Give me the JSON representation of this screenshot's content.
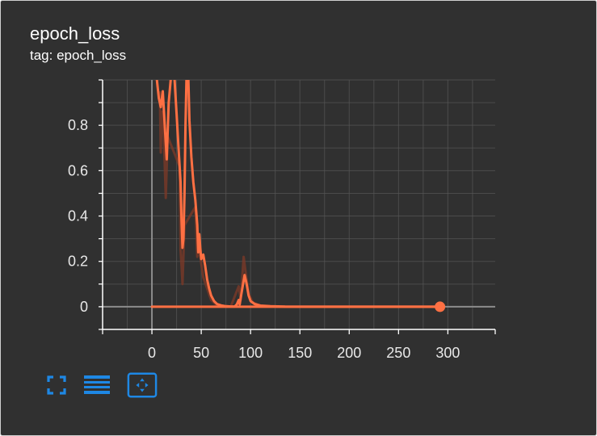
{
  "card": {
    "title": "epoch_loss",
    "subtitle": "tag: epoch_loss"
  },
  "toolbar": {
    "buttons": [
      {
        "name": "fullscreen-icon"
      },
      {
        "name": "data-table-icon"
      },
      {
        "name": "fit-domain-icon"
      }
    ]
  },
  "colors": {
    "series": "#ff7043",
    "raw_series": "#7a3a28",
    "background": "#303030",
    "grid": "#555555",
    "axis": "#8c8c8c",
    "icon": "#1e88e5"
  },
  "chart_data": {
    "type": "line",
    "xlim": [
      -50,
      348
    ],
    "ylim": [
      -0.1,
      1.0
    ],
    "x_ticks": [
      0,
      50,
      100,
      150,
      200,
      250,
      300
    ],
    "y_ticks": [
      0,
      0.2,
      0.4,
      0.6,
      0.8
    ],
    "grid": true,
    "legend": "none",
    "series": [
      {
        "smoothed": true,
        "points": [
          [
            0,
            0
          ],
          [
            292,
            0
          ]
        ],
        "end_marker": [
          292,
          0
        ]
      },
      {
        "smoothed": true,
        "points": [
          [
            5,
            1.0
          ],
          [
            7,
            0.92
          ],
          [
            9,
            0.88
          ],
          [
            11,
            0.95
          ],
          [
            13,
            0.8
          ],
          [
            15,
            0.65
          ],
          [
            17,
            0.9
          ],
          [
            19,
            1.0
          ]
        ]
      },
      {
        "smoothed": true,
        "points": [
          [
            23,
            1.0
          ],
          [
            25,
            0.85
          ],
          [
            27,
            0.7
          ],
          [
            29,
            0.55
          ],
          [
            30,
            0.38
          ],
          [
            31,
            0.26
          ],
          [
            32,
            0.3
          ],
          [
            33,
            0.5
          ],
          [
            34,
            0.8
          ],
          [
            35,
            1.0
          ]
        ]
      },
      {
        "smoothed": true,
        "points": [
          [
            37,
            1.0
          ],
          [
            38,
            0.82
          ],
          [
            40,
            0.66
          ],
          [
            42,
            0.55
          ],
          [
            44,
            0.47
          ],
          [
            46,
            0.36
          ],
          [
            47,
            0.24
          ],
          [
            48,
            0.32
          ],
          [
            49,
            0.26
          ],
          [
            50,
            0.21
          ],
          [
            52,
            0.23
          ],
          [
            54,
            0.18
          ],
          [
            56,
            0.12
          ],
          [
            58,
            0.08
          ],
          [
            60,
            0.05
          ],
          [
            63,
            0.025
          ],
          [
            66,
            0.012
          ],
          [
            70,
            0.006
          ],
          [
            74,
            0.003
          ],
          [
            80,
            0.001
          ],
          [
            84,
            0.001
          ],
          [
            86,
            0.01
          ],
          [
            88,
            0.03
          ],
          [
            89,
            0.01
          ],
          [
            90,
            0.04
          ],
          [
            92,
            0.09
          ],
          [
            94,
            0.14
          ],
          [
            96,
            0.1
          ],
          [
            98,
            0.05
          ],
          [
            100,
            0.025
          ],
          [
            104,
            0.012
          ],
          [
            110,
            0.005
          ],
          [
            120,
            0.002
          ],
          [
            135,
            0.0005
          ],
          [
            160,
            0.0002
          ],
          [
            200,
            0.0001
          ],
          [
            292,
            0.0
          ]
        ]
      }
    ],
    "raw_series": [
      {
        "points": [
          [
            8,
            0.95
          ],
          [
            9,
            0.68
          ],
          [
            10,
            0.86
          ],
          [
            12,
            0.76
          ],
          [
            14,
            0.48
          ],
          [
            16,
            0.75
          ],
          [
            28,
            0.62
          ],
          [
            29,
            0.25
          ],
          [
            30,
            0.18
          ],
          [
            31,
            0.1
          ],
          [
            33,
            0.36
          ],
          [
            44,
            0.44
          ],
          [
            46,
            0.22
          ],
          [
            48,
            0.26
          ],
          [
            50,
            0.19
          ],
          [
            52,
            0.13
          ],
          [
            56,
            0.08
          ],
          [
            60,
            0.03
          ],
          [
            65,
            0.01
          ],
          [
            70,
            0.004
          ],
          [
            80,
            0.001
          ],
          [
            88,
            0.09
          ],
          [
            90,
            0.03
          ],
          [
            93,
            0.22
          ],
          [
            95,
            0.15
          ],
          [
            98,
            0.06
          ],
          [
            102,
            0.02
          ],
          [
            110,
            0.004
          ],
          [
            130,
            0.0
          ]
        ]
      }
    ]
  }
}
